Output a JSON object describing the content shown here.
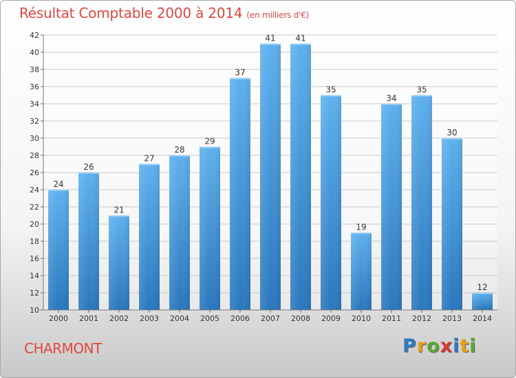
{
  "title": "Résultat Comptable 2000 à 2014",
  "subtitle": "(en milliers d'€)",
  "location": "CHARMONT",
  "brand": {
    "letters": [
      "P",
      "r",
      "o",
      "x",
      "i",
      "t",
      "i"
    ],
    "colors": [
      "#2e79c2",
      "#e3a21a",
      "#5aa832",
      "#d63a2f",
      "#2e79c2",
      "#e3a21a",
      "#5aa832"
    ]
  },
  "chart_data": {
    "type": "bar",
    "title": "Résultat Comptable 2000 à 2014",
    "subtitle": "(en milliers d'€)",
    "xlabel": "",
    "ylabel": "",
    "categories": [
      "2000",
      "2001",
      "2002",
      "2003",
      "2004",
      "2005",
      "2006",
      "2007",
      "2008",
      "2009",
      "2010",
      "2011",
      "2012",
      "2013",
      "2014"
    ],
    "values": [
      24,
      26,
      21,
      27,
      28,
      29,
      37,
      41,
      41,
      35,
      19,
      34,
      35,
      30,
      12
    ],
    "ylim": [
      10,
      42
    ],
    "yticks": [
      10,
      12,
      14,
      16,
      18,
      20,
      22,
      24,
      26,
      28,
      30,
      32,
      34,
      36,
      38,
      40,
      42
    ],
    "grid": true,
    "bar_color": "#3f8fd6"
  }
}
